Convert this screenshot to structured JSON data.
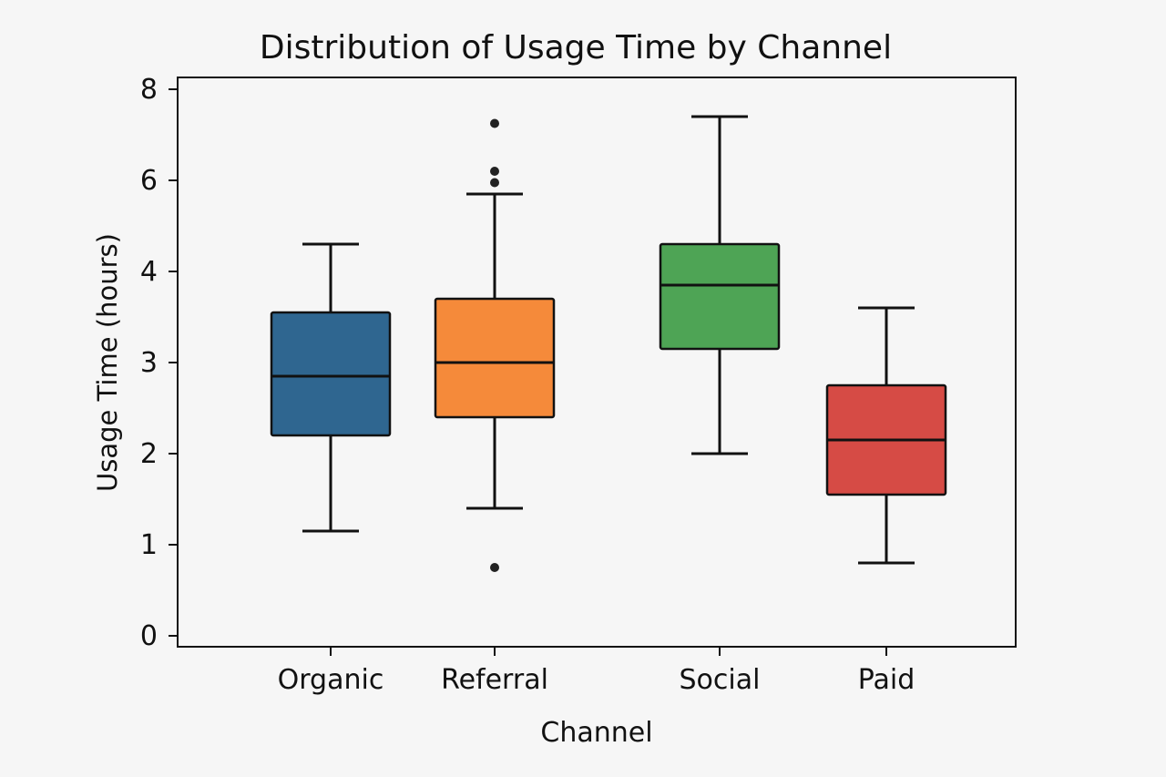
{
  "chart_data": {
    "type": "box",
    "title": "Distribution of Usage Time by Channel",
    "xlabel": "Channel",
    "ylabel": "Usage Time (hours)",
    "ylim": [
      0,
      8
    ],
    "y_ticks": [
      {
        "value": 0,
        "label": "0"
      },
      {
        "value": 1,
        "label": "1"
      },
      {
        "value": 2,
        "label": "2"
      },
      {
        "value": 3,
        "label": "3"
      },
      {
        "value": 4,
        "label": "4"
      },
      {
        "value": 6,
        "label": "6"
      },
      {
        "value": 8,
        "label": "8"
      }
    ],
    "grid": false,
    "categories": [
      "Organic",
      "Referral",
      "Social",
      "Paid"
    ],
    "series": [
      {
        "name": "Organic",
        "color": "#2f6690",
        "whisker_low": 1.15,
        "q1": 2.2,
        "median": 2.85,
        "q3": 3.55,
        "whisker_high": 4.6,
        "outliers": []
      },
      {
        "name": "Referral",
        "color": "#f58a3a",
        "whisker_low": 1.4,
        "q1": 2.4,
        "median": 3.0,
        "q3": 3.7,
        "whisker_high": 5.7,
        "outliers": [
          0.75,
          5.95,
          6.2,
          7.25
        ]
      },
      {
        "name": "Social",
        "color": "#4ea455",
        "whisker_low": 2.0,
        "q1": 3.15,
        "median": 3.85,
        "q3": 4.6,
        "whisker_high": 7.4,
        "outliers": []
      },
      {
        "name": "Paid",
        "color": "#d64b45",
        "whisker_low": 0.8,
        "q1": 1.55,
        "median": 2.15,
        "q3": 2.75,
        "whisker_high": 3.6,
        "outliers": []
      }
    ]
  }
}
